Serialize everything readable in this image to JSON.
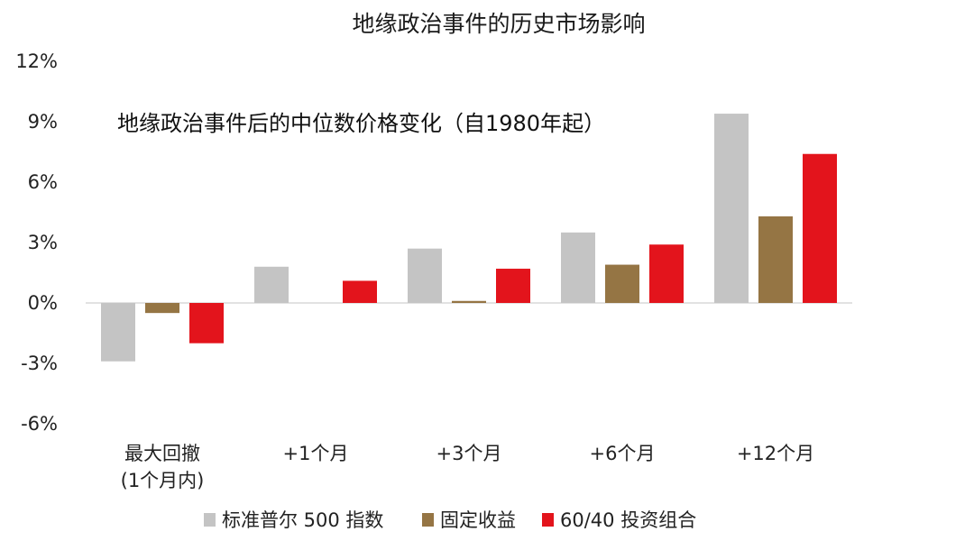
{
  "chart_data": {
    "type": "bar",
    "title": "地缘政治事件的历史市场影响",
    "subtitle": "地缘政治事件后的中位数价格变化（自1980年起）",
    "xlabel": "",
    "ylabel": "",
    "ylim": [
      -6,
      12
    ],
    "yticks": [
      -6,
      -3,
      0,
      3,
      6,
      9,
      12
    ],
    "ytick_labels": [
      "-6%",
      "-3%",
      "0%",
      "3%",
      "6%",
      "9%",
      "12%"
    ],
    "grid": false,
    "legend_position": "bottom",
    "categories": [
      [
        "最大回撤",
        "(1个月内)"
      ],
      [
        "+1个月"
      ],
      [
        "+3个月"
      ],
      [
        "+6个月"
      ],
      [
        "+12个月"
      ]
    ],
    "series": [
      {
        "name": "标准普尔 500 指数",
        "color": "#c4c4c4",
        "values": [
          -2.9,
          1.8,
          2.7,
          3.5,
          9.4
        ]
      },
      {
        "name": "固定收益",
        "color": "#957544",
        "values": [
          -0.5,
          0.0,
          0.1,
          1.9,
          4.3
        ]
      },
      {
        "name": "60/40 投资组合",
        "color": "#e3141c",
        "values": [
          -2.0,
          1.1,
          1.7,
          2.9,
          7.4
        ]
      }
    ]
  }
}
